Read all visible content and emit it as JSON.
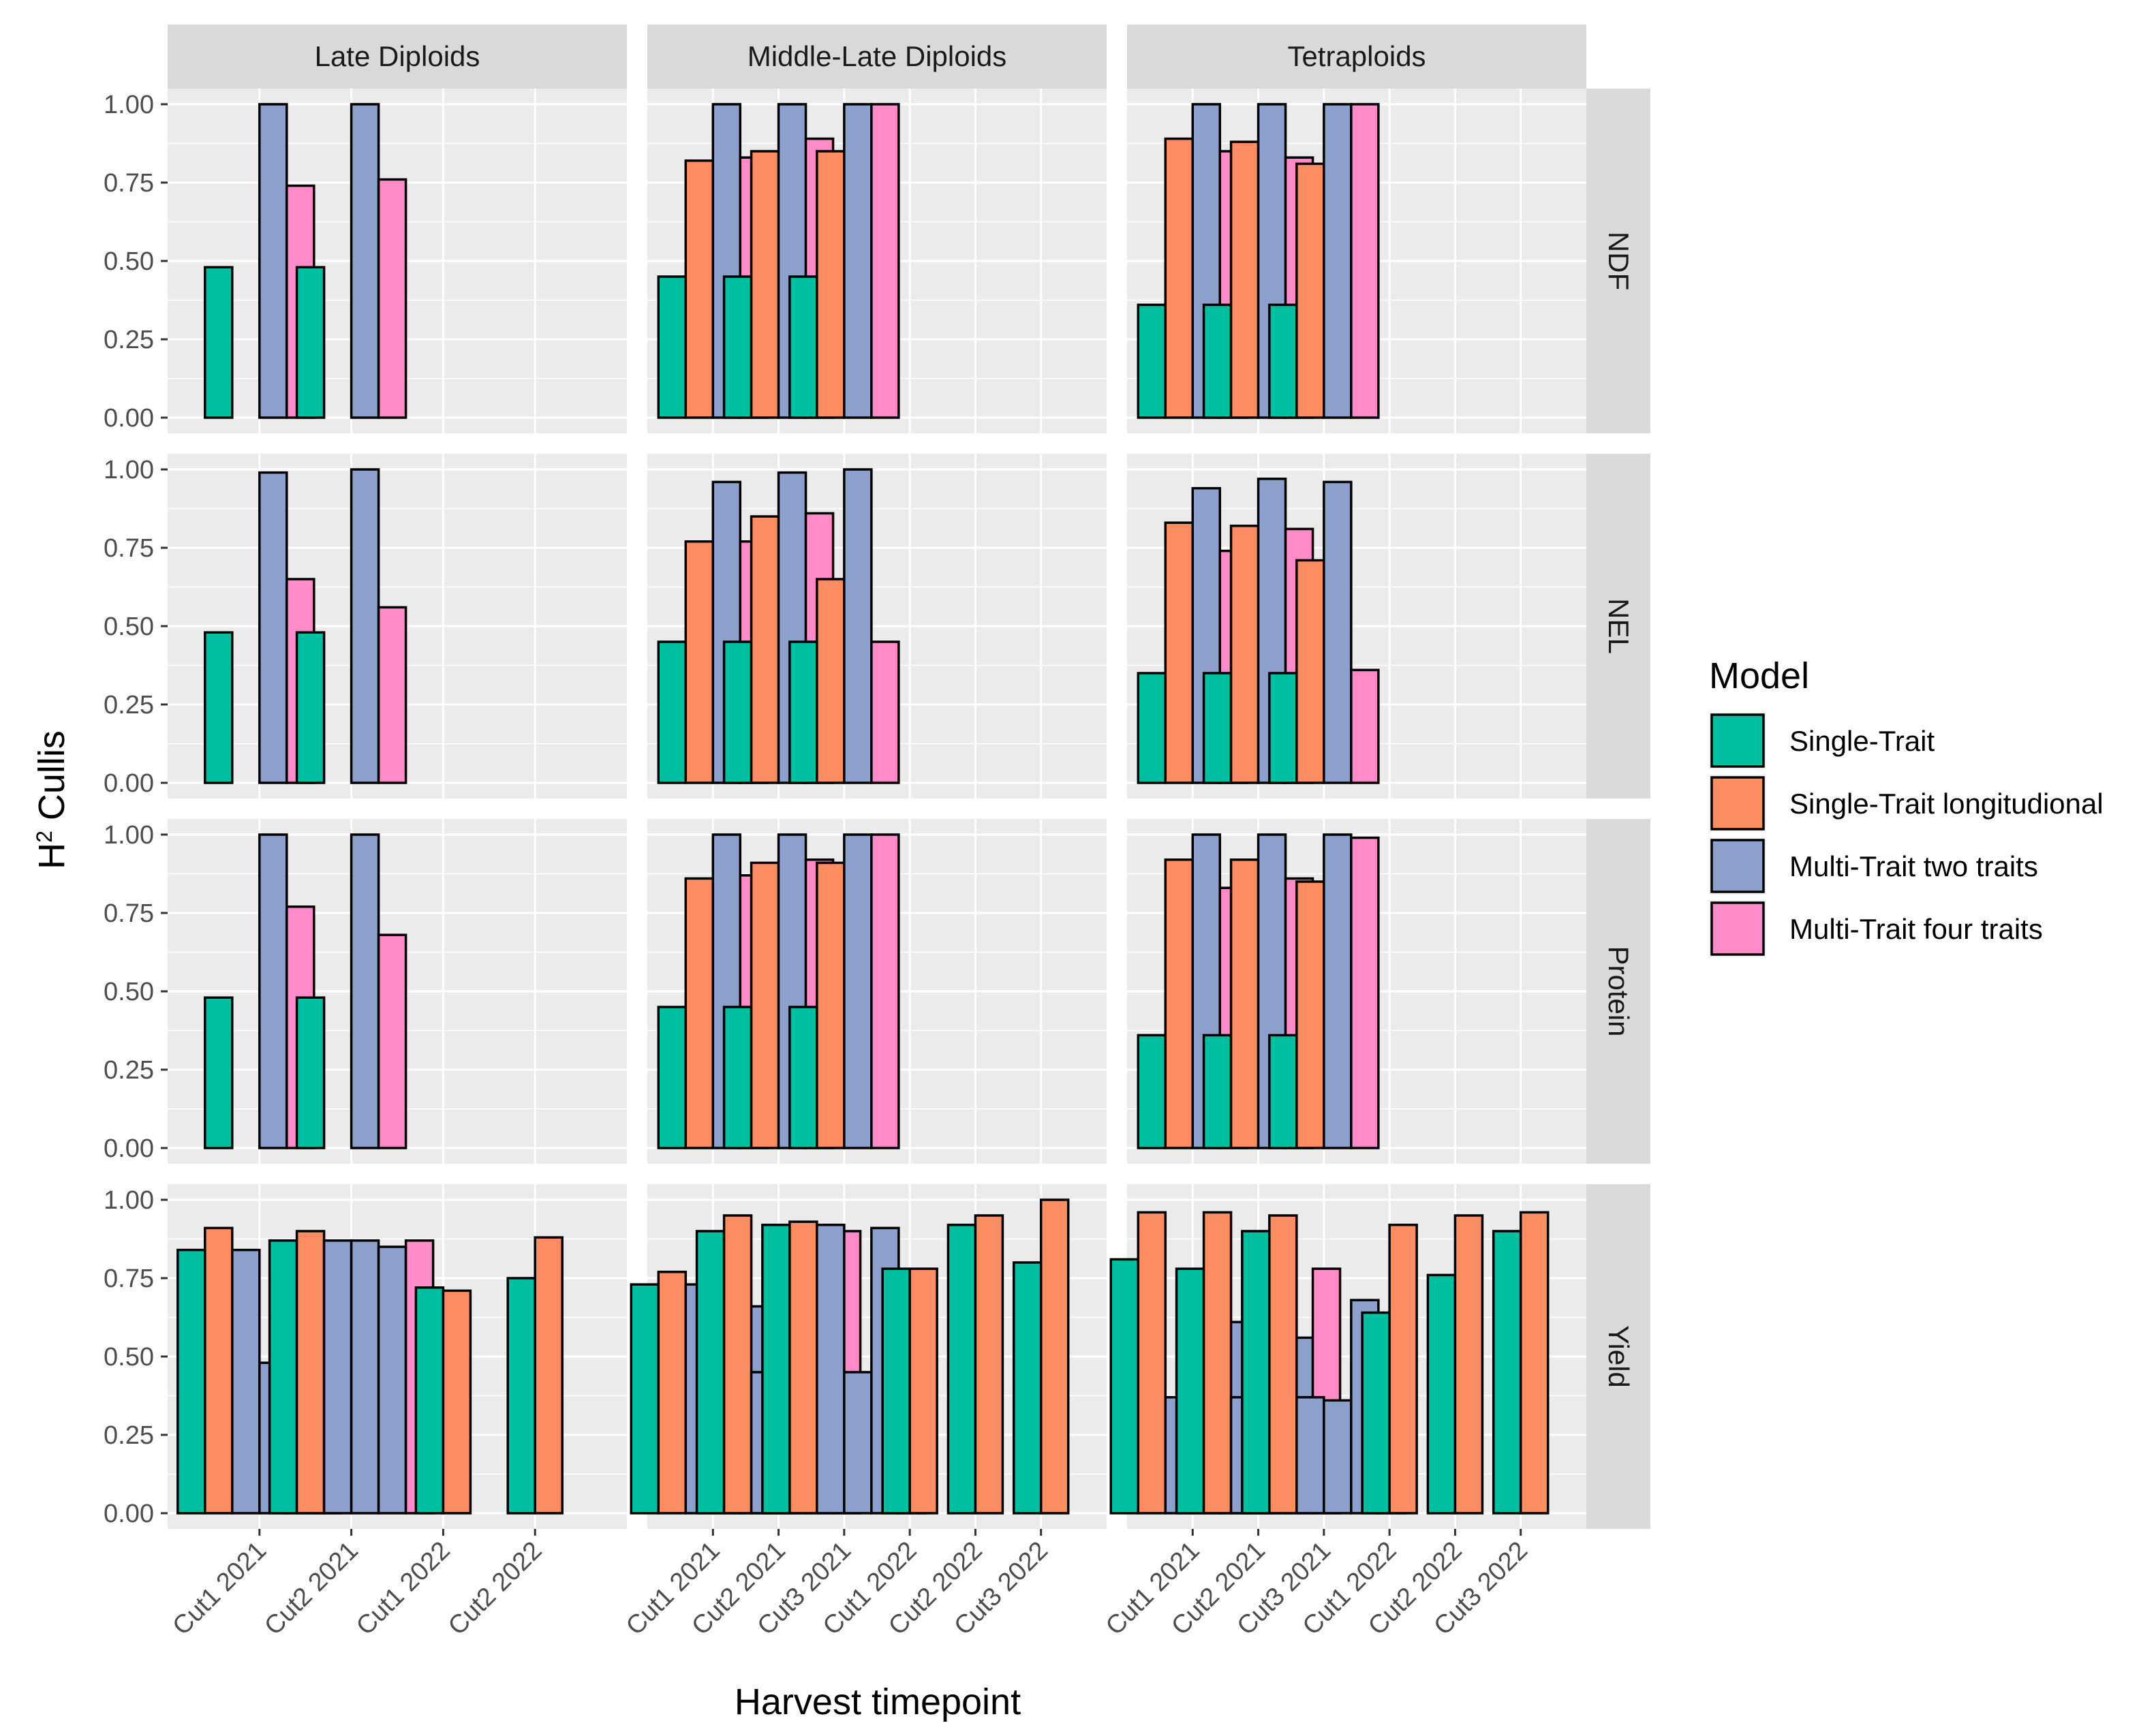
{
  "chart_data": {
    "type": "bar",
    "layout": "facet_grid",
    "xlabel": "Harvest timepoint",
    "ylabel": "H² Cullis",
    "ylabel_main": "H",
    "ylabel_sup": "2",
    "ylabel_rest": " Cullis",
    "ylim": [
      0,
      1
    ],
    "yticks": [
      "0.00",
      "0.25",
      "0.50",
      "0.75",
      "1.00"
    ],
    "ytick_values": [
      0,
      0.25,
      0.5,
      0.75,
      1.0
    ],
    "legend": {
      "title": "Model",
      "placement": "right",
      "entries": [
        {
          "label": "Single-Trait",
          "color": "#00BFA0"
        },
        {
          "label": "Single-Trait longitudional",
          "color": "#FC8D62"
        },
        {
          "label": "Multi-Trait two traits",
          "color": "#8DA0CB"
        },
        {
          "label": "Multi-Trait four traits",
          "color": "#FF8CC8"
        }
      ]
    },
    "columns": [
      {
        "name": "Late Diploids",
        "timepoints": [
          "Cut1 2021",
          "Cut2 2021",
          "Cut1 2022",
          "Cut2 2022"
        ]
      },
      {
        "name": "Middle-Late Diploids",
        "timepoints": [
          "Cut1 2021",
          "Cut2 2021",
          "Cut3 2021",
          "Cut1 2022",
          "Cut2 2022",
          "Cut3 2022"
        ]
      },
      {
        "name": "Tetraploids",
        "timepoints": [
          "Cut1 2021",
          "Cut2 2021",
          "Cut3 2021",
          "Cut1 2022",
          "Cut2 2022",
          "Cut3 2022"
        ]
      }
    ],
    "rows": [
      "NDF",
      "NEL",
      "Protein",
      "Yield"
    ],
    "panels": [
      [
        {
          "bars": [
            {
              "t": 0,
              "m": 0,
              "v": 0.48
            },
            {
              "t": 0,
              "m": 2,
              "v": 1.0
            },
            {
              "t": 0,
              "m": 3,
              "v": 0.74
            },
            {
              "t": 1,
              "m": 0,
              "v": 0.48
            },
            {
              "t": 1,
              "m": 2,
              "v": 1.0
            },
            {
              "t": 1,
              "m": 3,
              "v": 0.76
            }
          ]
        },
        {
          "bars": [
            {
              "t": 0,
              "m": 0,
              "v": 0.45
            },
            {
              "t": 0,
              "m": 1,
              "v": 0.82
            },
            {
              "t": 0,
              "m": 2,
              "v": 1.0
            },
            {
              "t": 0,
              "m": 3,
              "v": 0.83
            },
            {
              "t": 1,
              "m": 0,
              "v": 0.45
            },
            {
              "t": 1,
              "m": 1,
              "v": 0.85
            },
            {
              "t": 1,
              "m": 2,
              "v": 1.0
            },
            {
              "t": 1,
              "m": 3,
              "v": 0.89
            },
            {
              "t": 2,
              "m": 0,
              "v": 0.45
            },
            {
              "t": 2,
              "m": 1,
              "v": 0.85
            },
            {
              "t": 2,
              "m": 2,
              "v": 1.0
            },
            {
              "t": 2,
              "m": 3,
              "v": 1.0
            }
          ]
        },
        {
          "bars": [
            {
              "t": 0,
              "m": 0,
              "v": 0.36
            },
            {
              "t": 0,
              "m": 1,
              "v": 0.89
            },
            {
              "t": 0,
              "m": 2,
              "v": 1.0
            },
            {
              "t": 0,
              "m": 3,
              "v": 0.85
            },
            {
              "t": 1,
              "m": 0,
              "v": 0.36
            },
            {
              "t": 1,
              "m": 1,
              "v": 0.88
            },
            {
              "t": 1,
              "m": 2,
              "v": 1.0
            },
            {
              "t": 1,
              "m": 3,
              "v": 0.83
            },
            {
              "t": 2,
              "m": 0,
              "v": 0.36
            },
            {
              "t": 2,
              "m": 1,
              "v": 0.81
            },
            {
              "t": 2,
              "m": 2,
              "v": 1.0
            },
            {
              "t": 2,
              "m": 3,
              "v": 1.0
            }
          ]
        }
      ],
      [
        {
          "bars": [
            {
              "t": 0,
              "m": 0,
              "v": 0.48
            },
            {
              "t": 0,
              "m": 2,
              "v": 0.99
            },
            {
              "t": 0,
              "m": 3,
              "v": 0.65
            },
            {
              "t": 1,
              "m": 0,
              "v": 0.48
            },
            {
              "t": 1,
              "m": 2,
              "v": 1.0
            },
            {
              "t": 1,
              "m": 3,
              "v": 0.56
            }
          ]
        },
        {
          "bars": [
            {
              "t": 0,
              "m": 0,
              "v": 0.45
            },
            {
              "t": 0,
              "m": 1,
              "v": 0.77
            },
            {
              "t": 0,
              "m": 2,
              "v": 0.96
            },
            {
              "t": 0,
              "m": 3,
              "v": 0.77
            },
            {
              "t": 1,
              "m": 0,
              "v": 0.45
            },
            {
              "t": 1,
              "m": 1,
              "v": 0.85
            },
            {
              "t": 1,
              "m": 2,
              "v": 0.99
            },
            {
              "t": 1,
              "m": 3,
              "v": 0.86
            },
            {
              "t": 2,
              "m": 0,
              "v": 0.45
            },
            {
              "t": 2,
              "m": 1,
              "v": 0.65
            },
            {
              "t": 2,
              "m": 2,
              "v": 1.0
            },
            {
              "t": 2,
              "m": 3,
              "v": 0.45
            }
          ]
        },
        {
          "bars": [
            {
              "t": 0,
              "m": 0,
              "v": 0.35
            },
            {
              "t": 0,
              "m": 1,
              "v": 0.83
            },
            {
              "t": 0,
              "m": 2,
              "v": 0.94
            },
            {
              "t": 0,
              "m": 3,
              "v": 0.74
            },
            {
              "t": 1,
              "m": 0,
              "v": 0.35
            },
            {
              "t": 1,
              "m": 1,
              "v": 0.82
            },
            {
              "t": 1,
              "m": 2,
              "v": 0.97
            },
            {
              "t": 1,
              "m": 3,
              "v": 0.81
            },
            {
              "t": 2,
              "m": 0,
              "v": 0.35
            },
            {
              "t": 2,
              "m": 1,
              "v": 0.71
            },
            {
              "t": 2,
              "m": 2,
              "v": 0.96
            },
            {
              "t": 2,
              "m": 3,
              "v": 0.36
            }
          ]
        }
      ],
      [
        {
          "bars": [
            {
              "t": 0,
              "m": 0,
              "v": 0.48
            },
            {
              "t": 0,
              "m": 2,
              "v": 1.0
            },
            {
              "t": 0,
              "m": 3,
              "v": 0.77
            },
            {
              "t": 1,
              "m": 0,
              "v": 0.48
            },
            {
              "t": 1,
              "m": 2,
              "v": 1.0
            },
            {
              "t": 1,
              "m": 3,
              "v": 0.68
            }
          ]
        },
        {
          "bars": [
            {
              "t": 0,
              "m": 0,
              "v": 0.45
            },
            {
              "t": 0,
              "m": 1,
              "v": 0.86
            },
            {
              "t": 0,
              "m": 2,
              "v": 1.0
            },
            {
              "t": 0,
              "m": 3,
              "v": 0.87
            },
            {
              "t": 1,
              "m": 0,
              "v": 0.45
            },
            {
              "t": 1,
              "m": 1,
              "v": 0.91
            },
            {
              "t": 1,
              "m": 2,
              "v": 1.0
            },
            {
              "t": 1,
              "m": 3,
              "v": 0.92
            },
            {
              "t": 2,
              "m": 0,
              "v": 0.45
            },
            {
              "t": 2,
              "m": 1,
              "v": 0.91
            },
            {
              "t": 2,
              "m": 2,
              "v": 1.0
            },
            {
              "t": 2,
              "m": 3,
              "v": 1.0
            }
          ]
        },
        {
          "bars": [
            {
              "t": 0,
              "m": 0,
              "v": 0.36
            },
            {
              "t": 0,
              "m": 1,
              "v": 0.92
            },
            {
              "t": 0,
              "m": 2,
              "v": 1.0
            },
            {
              "t": 0,
              "m": 3,
              "v": 0.83
            },
            {
              "t": 1,
              "m": 0,
              "v": 0.36
            },
            {
              "t": 1,
              "m": 1,
              "v": 0.92
            },
            {
              "t": 1,
              "m": 2,
              "v": 1.0
            },
            {
              "t": 1,
              "m": 3,
              "v": 0.86
            },
            {
              "t": 2,
              "m": 0,
              "v": 0.36
            },
            {
              "t": 2,
              "m": 1,
              "v": 0.85
            },
            {
              "t": 2,
              "m": 2,
              "v": 1.0
            },
            {
              "t": 2,
              "m": 3,
              "v": 0.99
            }
          ]
        }
      ],
      [
        {
          "bars": [
            {
              "t": 0,
              "m": 0,
              "v": 0.84
            },
            {
              "t": 0,
              "m": 1,
              "v": 0.91
            },
            {
              "t": 0,
              "m": 2,
              "v": 0.84
            },
            {
              "t": 0,
              "m": 2,
              "v": 0.48
            },
            {
              "t": 0,
              "m": 2,
              "v": 0.79
            },
            {
              "t": 0,
              "m": 3,
              "v": 0.84
            },
            {
              "t": 1,
              "m": 0,
              "v": 0.87
            },
            {
              "t": 1,
              "m": 1,
              "v": 0.9
            },
            {
              "t": 1,
              "m": 2,
              "v": 0.87
            },
            {
              "t": 1,
              "m": 2,
              "v": 0.87
            },
            {
              "t": 1,
              "m": 2,
              "v": 0.85
            },
            {
              "t": 1,
              "m": 3,
              "v": 0.87
            },
            {
              "t": 2,
              "m": 0,
              "v": 0.72
            },
            {
              "t": 2,
              "m": 1,
              "v": 0.71
            },
            {
              "t": 3,
              "m": 0,
              "v": 0.75
            },
            {
              "t": 3,
              "m": 1,
              "v": 0.88
            }
          ]
        },
        {
          "bars": [
            {
              "t": 0,
              "m": 0,
              "v": 0.73
            },
            {
              "t": 0,
              "m": 1,
              "v": 0.77
            },
            {
              "t": 0,
              "m": 2,
              "v": 0.73
            },
            {
              "t": 0,
              "m": 2,
              "v": 0.73
            },
            {
              "t": 0,
              "m": 2,
              "v": 0.66
            },
            {
              "t": 0,
              "m": 3,
              "v": 0.73
            },
            {
              "t": 1,
              "m": 0,
              "v": 0.9
            },
            {
              "t": 1,
              "m": 1,
              "v": 0.95
            },
            {
              "t": 1,
              "m": 2,
              "v": 0.45
            },
            {
              "t": 1,
              "m": 2,
              "v": 0.9
            },
            {
              "t": 1,
              "m": 2,
              "v": 0.87
            },
            {
              "t": 1,
              "m": 3,
              "v": 0.9
            },
            {
              "t": 2,
              "m": 0,
              "v": 0.92
            },
            {
              "t": 2,
              "m": 1,
              "v": 0.93
            },
            {
              "t": 2,
              "m": 2,
              "v": 0.92
            },
            {
              "t": 2,
              "m": 2,
              "v": 0.45
            },
            {
              "t": 2,
              "m": 2,
              "v": 0.91
            },
            {
              "t": 2,
              "m": 3,
              "v": 0.45
            },
            {
              "t": 3,
              "m": 0,
              "v": 0.78
            },
            {
              "t": 3,
              "m": 1,
              "v": 0.78
            },
            {
              "t": 4,
              "m": 0,
              "v": 0.92
            },
            {
              "t": 4,
              "m": 1,
              "v": 0.95
            },
            {
              "t": 5,
              "m": 0,
              "v": 0.8
            },
            {
              "t": 5,
              "m": 1,
              "v": 1.0
            }
          ]
        },
        {
          "bars": [
            {
              "t": 0,
              "m": 0,
              "v": 0.81
            },
            {
              "t": 0,
              "m": 1,
              "v": 0.96
            },
            {
              "t": 0,
              "m": 2,
              "v": 0.37
            },
            {
              "t": 0,
              "m": 2,
              "v": 0.36
            },
            {
              "t": 0,
              "m": 2,
              "v": 0.61
            },
            {
              "t": 0,
              "m": 3,
              "v": 0.72
            },
            {
              "t": 1,
              "m": 0,
              "v": 0.78
            },
            {
              "t": 1,
              "m": 1,
              "v": 0.96
            },
            {
              "t": 1,
              "m": 2,
              "v": 0.37
            },
            {
              "t": 1,
              "m": 2,
              "v": 0.36
            },
            {
              "t": 1,
              "m": 2,
              "v": 0.56
            },
            {
              "t": 1,
              "m": 3,
              "v": 0.78
            },
            {
              "t": 2,
              "m": 0,
              "v": 0.9
            },
            {
              "t": 2,
              "m": 1,
              "v": 0.95
            },
            {
              "t": 2,
              "m": 2,
              "v": 0.37
            },
            {
              "t": 2,
              "m": 2,
              "v": 0.36
            },
            {
              "t": 2,
              "m": 2,
              "v": 0.68
            },
            {
              "t": 2,
              "m": 3,
              "v": 0.36
            },
            {
              "t": 3,
              "m": 0,
              "v": 0.64
            },
            {
              "t": 3,
              "m": 1,
              "v": 0.92
            },
            {
              "t": 4,
              "m": 0,
              "v": 0.76
            },
            {
              "t": 4,
              "m": 1,
              "v": 0.95
            },
            {
              "t": 5,
              "m": 0,
              "v": 0.9
            },
            {
              "t": 5,
              "m": 1,
              "v": 0.96
            }
          ]
        }
      ]
    ]
  }
}
